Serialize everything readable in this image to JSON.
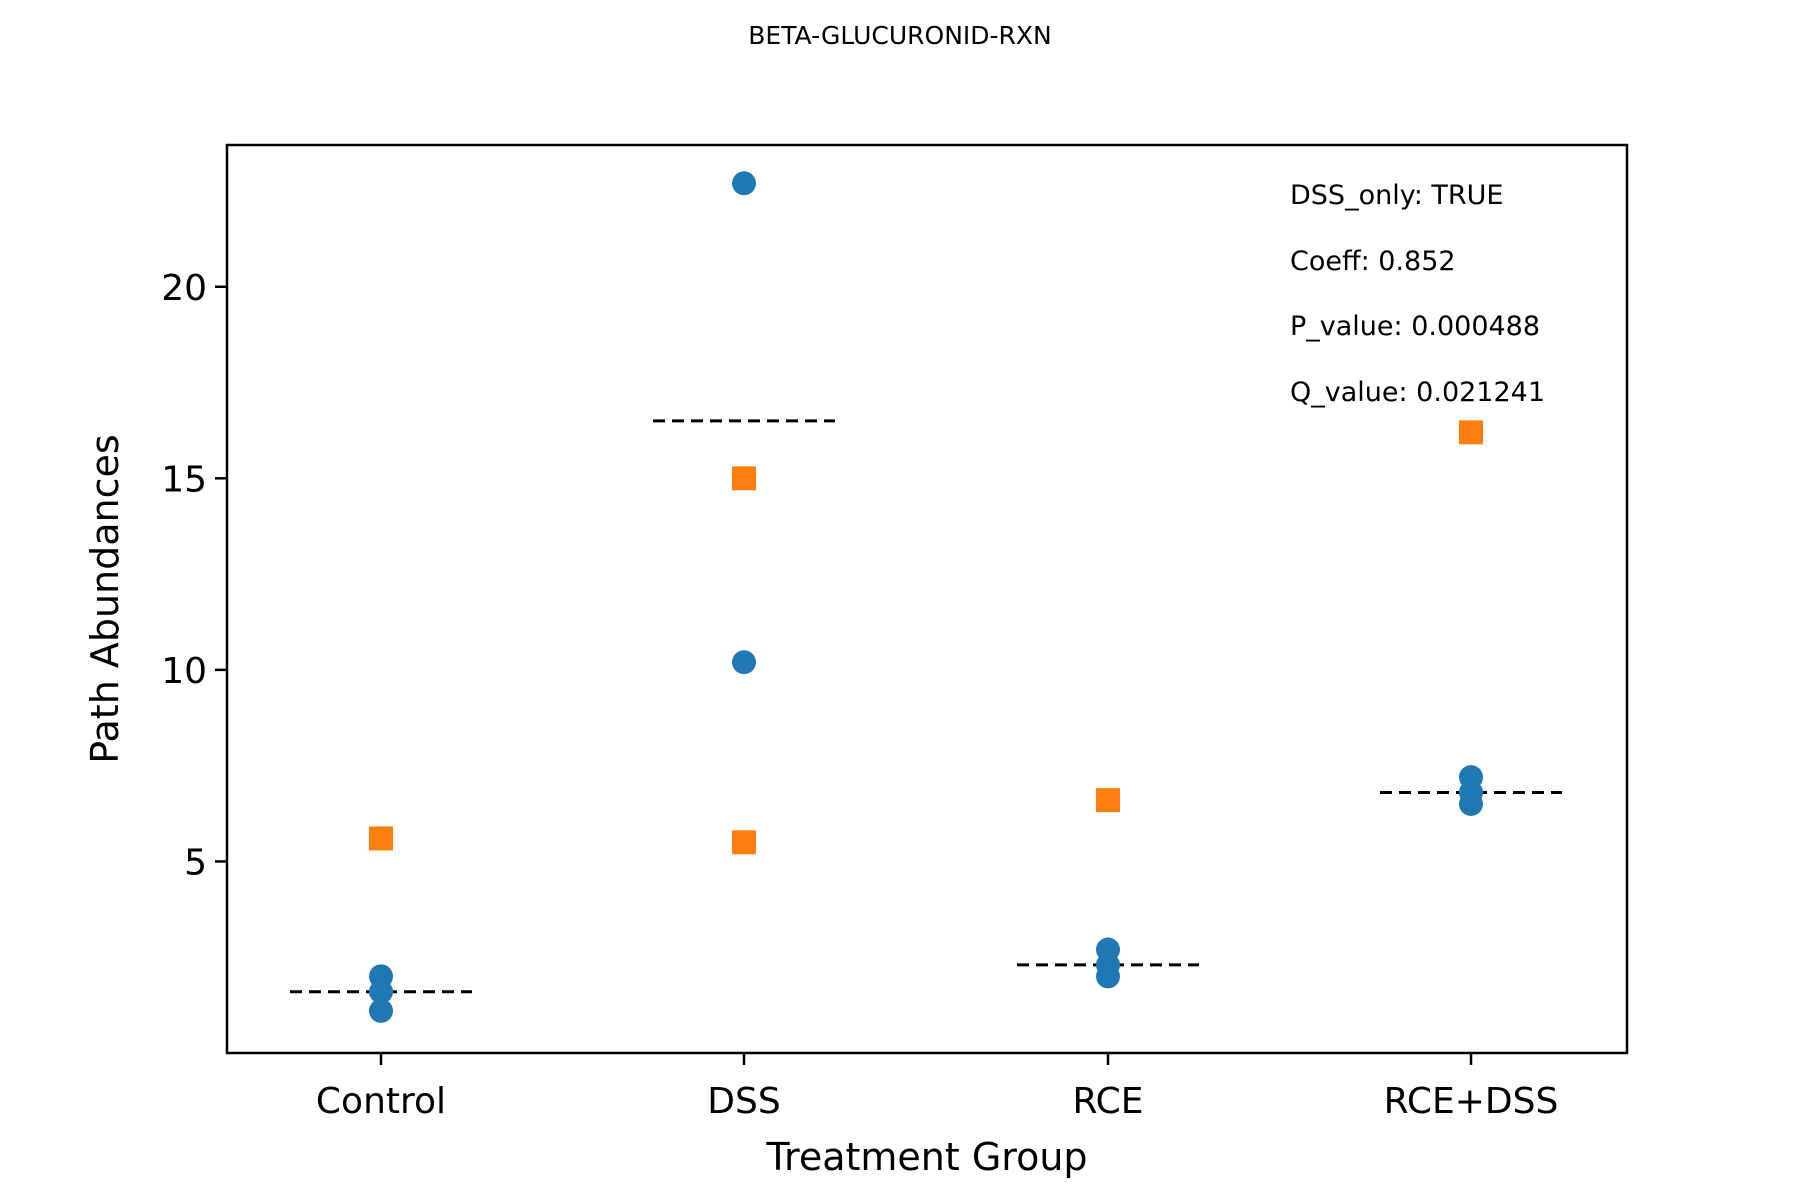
{
  "chart_data": {
    "type": "scatter",
    "title": "BETA-GLUCURONID-RXN",
    "xlabel": "Treatment Group",
    "ylabel": "Path Abundances",
    "categories": [
      "Control",
      "DSS",
      "RCE",
      "RCE+DSS"
    ],
    "ylim": [
      0.0,
      23.7
    ],
    "yticks": [
      5,
      10,
      15,
      20
    ],
    "grid": false,
    "series": [
      {
        "marker": "circle",
        "color": "#1f77b4",
        "points": [
          {
            "x": "Control",
            "y": 2.0
          },
          {
            "x": "Control",
            "y": 1.6
          },
          {
            "x": "Control",
            "y": 1.1
          },
          {
            "x": "DSS",
            "y": 22.7
          },
          {
            "x": "DSS",
            "y": 10.2
          },
          {
            "x": "RCE",
            "y": 2.7
          },
          {
            "x": "RCE",
            "y": 2.3
          },
          {
            "x": "RCE",
            "y": 2.0
          },
          {
            "x": "RCE+DSS",
            "y": 7.2
          },
          {
            "x": "RCE+DSS",
            "y": 6.8
          },
          {
            "x": "RCE+DSS",
            "y": 6.5
          }
        ]
      },
      {
        "marker": "square",
        "color": "#ff7f0e",
        "points": [
          {
            "x": "Control",
            "y": 5.6
          },
          {
            "x": "DSS",
            "y": 15.0
          },
          {
            "x": "DSS",
            "y": 5.5
          },
          {
            "x": "RCE",
            "y": 6.6
          },
          {
            "x": "RCE+DSS",
            "y": 16.2
          }
        ]
      }
    ],
    "group_means": [
      {
        "x": "Control",
        "y": 1.6
      },
      {
        "x": "DSS",
        "y": 16.5
      },
      {
        "x": "RCE",
        "y": 2.3
      },
      {
        "x": "RCE+DSS",
        "y": 6.8
      }
    ],
    "annotations": [
      "DSS_only: TRUE",
      "Coeff: 0.852",
      "P_value: 0.000488",
      "Q_value: 0.021241"
    ]
  }
}
